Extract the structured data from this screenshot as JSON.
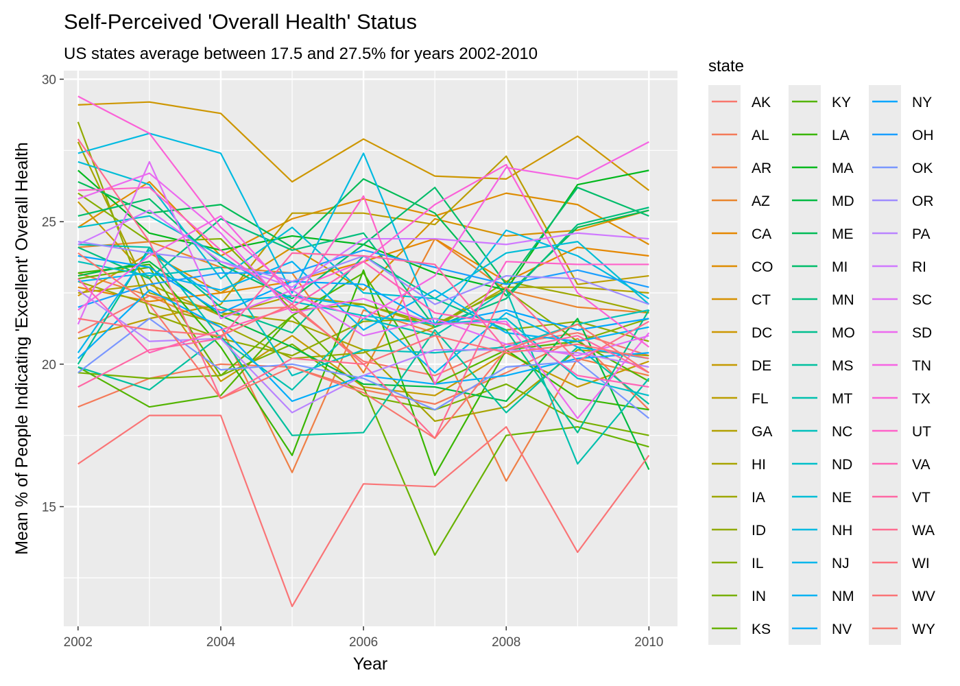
{
  "chart_data": {
    "type": "line",
    "title": "Self-Perceived 'Overall Health' Status",
    "subtitle": "US states average between 17.5 and 27.5% for years 2002-2010",
    "xlabel": "Year",
    "ylabel": "Mean % of People Indicating 'Excellent' Overall Health",
    "xlim": [
      2001.8,
      2010.4
    ],
    "ylim": [
      10.8,
      30.3
    ],
    "x_ticks": [
      "2002",
      "2004",
      "2006",
      "2008",
      "2010"
    ],
    "y_ticks": [
      "15",
      "20",
      "25",
      "30"
    ],
    "grid": true,
    "legend_title": "state",
    "legend_position": "right",
    "x": [
      2002,
      2003,
      2004,
      2005,
      2006,
      2007,
      2008,
      2009,
      2010
    ],
    "series": [
      {
        "name": "AK",
        "color": "#F8766D",
        "values": [
          21.1,
          22.4,
          21.9,
          22.0,
          20.1,
          19.6,
          20.7,
          21.1,
          20.3
        ]
      },
      {
        "name": "AL",
        "color": "#F47A59",
        "values": [
          18.5,
          19.5,
          20.0,
          19.9,
          19.1,
          18.6,
          19.7,
          20.9,
          18.4
        ]
      },
      {
        "name": "AR",
        "color": "#EF7F45",
        "values": [
          23.2,
          22.4,
          21.3,
          16.2,
          21.9,
          21.1,
          15.9,
          20.2,
          19.6
        ]
      },
      {
        "name": "AZ",
        "color": "#E9842C",
        "values": [
          24.1,
          24.3,
          23.4,
          23.2,
          19.7,
          24.4,
          22.6,
          22.0,
          21.8
        ]
      },
      {
        "name": "CA",
        "color": "#E58700",
        "values": [
          22.7,
          22.2,
          22.5,
          22.9,
          23.6,
          24.4,
          22.9,
          24.1,
          23.8
        ]
      },
      {
        "name": "CO",
        "color": "#DE8C00",
        "values": [
          24.8,
          26.4,
          23.8,
          25.1,
          25.8,
          25.2,
          26.0,
          25.6,
          24.2
        ]
      },
      {
        "name": "CT",
        "color": "#D69100",
        "values": [
          22.4,
          23.9,
          22.5,
          24.1,
          22.6,
          25.1,
          24.5,
          24.7,
          25.4
        ]
      },
      {
        "name": "DC",
        "color": "#CD9600",
        "values": [
          29.1,
          29.2,
          28.8,
          26.4,
          27.9,
          26.6,
          26.5,
          28.0,
          26.1
        ]
      },
      {
        "name": "DE",
        "color": "#C49A00",
        "values": [
          25.7,
          23.0,
          19.4,
          21.0,
          19.2,
          18.9,
          20.4,
          19.2,
          20.1
        ]
      },
      {
        "name": "FL",
        "color": "#BB9D00",
        "values": [
          20.9,
          21.6,
          22.1,
          25.3,
          25.3,
          24.9,
          27.3,
          22.8,
          23.1
        ]
      },
      {
        "name": "GA",
        "color": "#B2A100",
        "values": [
          22.5,
          22.8,
          21.7,
          22.4,
          22.1,
          21.3,
          22.7,
          22.7,
          22.5
        ]
      },
      {
        "name": "HI",
        "color": "#A7A300",
        "values": [
          27.8,
          22.5,
          21.8,
          21.5,
          20.5,
          18.0,
          18.5,
          20.5,
          20.3
        ]
      },
      {
        "name": "IA",
        "color": "#9DA700",
        "values": [
          22.9,
          22.1,
          21.4,
          20.2,
          20.4,
          21.3,
          22.9,
          22.4,
          21.8
        ]
      },
      {
        "name": "ID",
        "color": "#91AA00",
        "values": [
          28.5,
          21.8,
          20.9,
          20.3,
          21.5,
          21.6,
          21.2,
          21.5,
          20.8
        ]
      },
      {
        "name": "IL",
        "color": "#85AD00",
        "values": [
          26.0,
          24.3,
          24.4,
          21.9,
          22.1,
          21.4,
          22.6,
          20.8,
          21.6
        ]
      },
      {
        "name": "IN",
        "color": "#77AF00",
        "values": [
          19.7,
          19.5,
          19.6,
          20.7,
          18.9,
          18.4,
          19.3,
          18.0,
          17.5
        ]
      },
      {
        "name": "KS",
        "color": "#68B200",
        "values": [
          23.0,
          23.4,
          19.6,
          21.7,
          19.2,
          13.3,
          17.5,
          17.8,
          17.1
        ]
      },
      {
        "name": "KY",
        "color": "#53B400",
        "values": [
          19.9,
          18.5,
          18.9,
          21.7,
          23.2,
          19.3,
          20.5,
          20.8,
          19.4
        ]
      },
      {
        "name": "LA",
        "color": "#39B600",
        "values": [
          23.2,
          23.5,
          20.6,
          16.8,
          23.3,
          16.1,
          20.5,
          18.8,
          18.4
        ]
      },
      {
        "name": "MA",
        "color": "#00B81C",
        "values": [
          26.8,
          24.6,
          24.0,
          24.5,
          24.2,
          23.2,
          22.6,
          26.3,
          26.8
        ]
      },
      {
        "name": "MD",
        "color": "#00BA42",
        "values": [
          23.1,
          23.6,
          21.7,
          20.6,
          19.3,
          19.2,
          18.7,
          21.6,
          16.3
        ]
      },
      {
        "name": "ME",
        "color": "#00BB56",
        "values": [
          26.4,
          25.3,
          25.6,
          24.1,
          26.5,
          25.3,
          22.4,
          24.8,
          25.4
        ]
      },
      {
        "name": "MI",
        "color": "#00BC6A",
        "values": [
          25.2,
          25.8,
          23.5,
          22.3,
          24.2,
          26.2,
          22.8,
          26.2,
          25.2
        ]
      },
      {
        "name": "MN",
        "color": "#00BE7D",
        "values": [
          24.1,
          23.0,
          25.1,
          24.0,
          24.6,
          21.3,
          22.3,
          24.9,
          25.5
        ]
      },
      {
        "name": "MO",
        "color": "#00BF8E",
        "values": [
          20.0,
          24.1,
          22.0,
          21.1,
          23.8,
          22.3,
          21.2,
          17.6,
          21.9
        ]
      },
      {
        "name": "MS",
        "color": "#00C09E",
        "values": [
          19.9,
          19.1,
          21.0,
          17.5,
          17.6,
          21.2,
          18.3,
          20.6,
          18.6
        ]
      },
      {
        "name": "MT",
        "color": "#00C0AE",
        "values": [
          24.2,
          24.1,
          20.9,
          19.1,
          21.6,
          21.0,
          22.6,
          16.5,
          19.5
        ]
      },
      {
        "name": "NC",
        "color": "#00C0BC",
        "values": [
          23.6,
          23.1,
          23.4,
          19.6,
          20.5,
          20.4,
          20.6,
          21.4,
          21.9
        ]
      },
      {
        "name": "ND",
        "color": "#00BFCA",
        "values": [
          24.8,
          25.2,
          23.8,
          22.2,
          21.7,
          21.4,
          21.6,
          19.5,
          18.9
        ]
      },
      {
        "name": "NE",
        "color": "#00BDD6",
        "values": [
          27.1,
          26.3,
          23.0,
          24.8,
          22.5,
          22.3,
          23.9,
          24.3,
          22.1
        ]
      },
      {
        "name": "NH",
        "color": "#00BAE1",
        "values": [
          27.4,
          28.1,
          27.4,
          22.5,
          27.4,
          21.4,
          24.7,
          23.8,
          22.3
        ]
      },
      {
        "name": "NJ",
        "color": "#00B6EB",
        "values": [
          20.4,
          24.0,
          22.2,
          22.4,
          22.0,
          19.7,
          21.8,
          20.6,
          20.2
        ]
      },
      {
        "name": "NM",
        "color": "#00B2F3",
        "values": [
          22.9,
          23.2,
          22.6,
          23.6,
          21.2,
          22.6,
          21.1,
          20.8,
          21.3
        ]
      },
      {
        "name": "NV",
        "color": "#00ACFA",
        "values": [
          20.2,
          22.6,
          21.3,
          18.7,
          19.6,
          19.3,
          19.6,
          20.2,
          20.4
        ]
      },
      {
        "name": "NY",
        "color": "#00A6FF",
        "values": [
          23.8,
          23.4,
          21.8,
          22.9,
          22.8,
          21.4,
          21.9,
          21.2,
          21.6
        ]
      },
      {
        "name": "OH",
        "color": "#1A9EFF",
        "values": [
          22.0,
          22.8,
          23.2,
          23.2,
          24.0,
          23.4,
          22.8,
          23.3,
          22.7
        ]
      },
      {
        "name": "OK",
        "color": "#7996FF",
        "values": [
          19.7,
          21.6,
          19.8,
          20.0,
          19.5,
          18.4,
          19.9,
          20.1,
          18.1
        ]
      },
      {
        "name": "OR",
        "color": "#9E8BFF",
        "values": [
          24.3,
          23.9,
          23.6,
          22.9,
          23.8,
          22.1,
          23.1,
          23.0,
          22.1
        ]
      },
      {
        "name": "PA",
        "color": "#B983FF",
        "values": [
          22.6,
          20.8,
          20.9,
          18.3,
          19.6,
          20.5,
          20.5,
          20.4,
          19.9
        ]
      },
      {
        "name": "RI",
        "color": "#CF78FF",
        "values": [
          24.2,
          25.4,
          23.6,
          22.7,
          24.4,
          24.4,
          24.2,
          24.6,
          24.4
        ]
      },
      {
        "name": "SC",
        "color": "#E06FF6",
        "values": [
          21.4,
          27.1,
          21.6,
          22.6,
          21.0,
          21.6,
          20.7,
          20.3,
          21.0
        ]
      },
      {
        "name": "SD",
        "color": "#EC69EF",
        "values": [
          25.8,
          26.7,
          24.6,
          21.8,
          22.3,
          21.4,
          21.5,
          18.1,
          21.1
        ]
      },
      {
        "name": "TN",
        "color": "#F564E3",
        "values": [
          21.9,
          23.8,
          25.2,
          22.4,
          21.6,
          23.1,
          26.9,
          26.5,
          27.8
        ]
      },
      {
        "name": "TX",
        "color": "#FB61D7",
        "values": [
          29.4,
          28.1,
          24.8,
          22.6,
          23.6,
          25.6,
          27.0,
          22.5,
          20.6
        ]
      },
      {
        "name": "UT",
        "color": "#FF61C9",
        "values": [
          26.1,
          26.2,
          24.0,
          22.1,
          25.9,
          19.3,
          23.6,
          23.5,
          23.5
        ]
      },
      {
        "name": "VA",
        "color": "#FF63B6",
        "values": [
          23.0,
          20.4,
          21.2,
          22.0,
          23.6,
          21.8,
          21.4,
          19.6,
          19.2
        ]
      },
      {
        "name": "VT",
        "color": "#FF67A4",
        "values": [
          19.2,
          20.5,
          20.9,
          23.9,
          23.8,
          23.5,
          20.5,
          21.0,
          19.7
        ]
      },
      {
        "name": "WA",
        "color": "#FF6C90",
        "values": [
          27.9,
          24.3,
          18.8,
          20.2,
          20.0,
          17.4,
          22.7,
          20.1,
          21.5
        ]
      },
      {
        "name": "WI",
        "color": "#FD717B",
        "values": [
          21.6,
          21.2,
          21.0,
          22.1,
          20.0,
          21.0,
          20.4,
          20.7,
          20.2
        ]
      },
      {
        "name": "WV",
        "color": "#FA7476",
        "values": [
          16.5,
          18.2,
          18.2,
          11.5,
          15.8,
          15.7,
          17.8,
          13.4,
          16.8
        ]
      },
      {
        "name": "WY",
        "color": "#F8766D",
        "values": [
          23.9,
          22.1,
          18.8,
          19.9,
          19.0,
          17.4,
          20.5,
          21.4,
          19.7
        ]
      }
    ]
  }
}
